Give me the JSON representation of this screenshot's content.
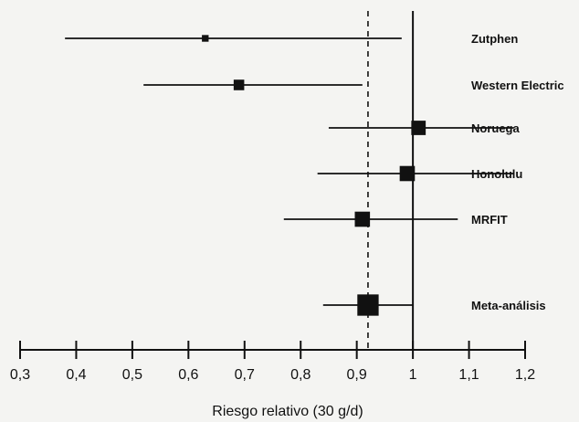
{
  "chart_data": {
    "type": "forest",
    "xlabel": "Riesgo relativo (30 g/d)",
    "xlim": [
      0.3,
      1.2
    ],
    "x_ticks": [
      {
        "value": 0.3,
        "label": "0,3"
      },
      {
        "value": 0.4,
        "label": "0,4"
      },
      {
        "value": 0.5,
        "label": "0,5"
      },
      {
        "value": 0.6,
        "label": "0,6"
      },
      {
        "value": 0.7,
        "label": "0,7"
      },
      {
        "value": 0.8,
        "label": "0,8"
      },
      {
        "value": 0.9,
        "label": "0,9"
      },
      {
        "value": 1.0,
        "label": "1"
      },
      {
        "value": 1.1,
        "label": "1,1"
      },
      {
        "value": 1.2,
        "label": "1,2"
      }
    ],
    "reference_line": 1.0,
    "pooled_line": 0.92,
    "studies": [
      {
        "label": "Zutphen",
        "estimate": 0.63,
        "ci_low": 0.38,
        "ci_high": 0.98,
        "weight": 0.4
      },
      {
        "label": "Western Electric",
        "estimate": 0.69,
        "ci_low": 0.52,
        "ci_high": 0.91,
        "weight": 0.9
      },
      {
        "label": "Noruega",
        "estimate": 1.01,
        "ci_low": 0.85,
        "ci_high": 1.18,
        "weight": 1.4
      },
      {
        "label": "Honolulu",
        "estimate": 0.99,
        "ci_low": 0.83,
        "ci_high": 1.18,
        "weight": 1.5
      },
      {
        "label": "MRFIT",
        "estimate": 0.91,
        "ci_low": 0.77,
        "ci_high": 1.08,
        "weight": 1.5
      },
      {
        "label": "Meta-análisis",
        "estimate": 0.92,
        "ci_low": 0.84,
        "ci_high": 1.0,
        "weight": 2.3
      }
    ]
  }
}
